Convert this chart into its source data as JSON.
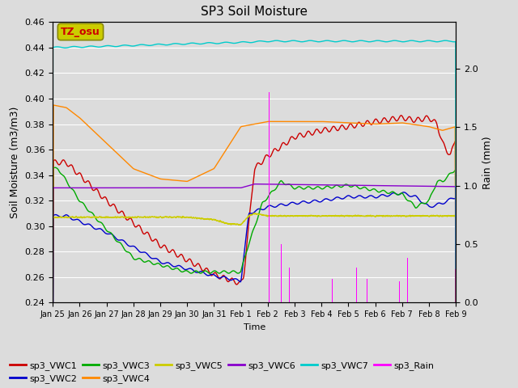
{
  "title": "SP3 Soil Moisture",
  "ylabel_left": "Soil Moisture (m3/m3)",
  "ylabel_right": "Rain (mm)",
  "xlabel": "Time",
  "ylim_left": [
    0.24,
    0.46
  ],
  "ylim_right": [
    0.0,
    2.4
  ],
  "bg_color": "#dcdcdc",
  "axes_bg_color": "#dcdcdc",
  "series_colors": {
    "VWC1": "#cc0000",
    "VWC2": "#0000cc",
    "VWC3": "#00aa00",
    "VWC4": "#ff8800",
    "VWC5": "#cccc00",
    "VWC6": "#8800cc",
    "VWC7": "#00cccc",
    "Rain": "#ff00ff"
  },
  "tz_label": "TZ_osu",
  "tz_box_color": "#cccc00",
  "tz_text_color": "#cc0000",
  "tick_labels": [
    "Jan 25",
    "Jan 26",
    "Jan 27",
    "Jan 28",
    "Jan 29",
    "Jan 30",
    "Jan 31",
    "Feb 1",
    "Feb 2",
    "Feb 3",
    "Feb 4",
    "Feb 5",
    "Feb 6",
    "Feb 7",
    "Feb 8",
    "Feb 9"
  ],
  "legend_labels": [
    "sp3_VWC1",
    "sp3_VWC2",
    "sp3_VWC3",
    "sp3_VWC4",
    "sp3_VWC5",
    "sp3_VWC6",
    "sp3_VWC7",
    "sp3_Rain"
  ]
}
